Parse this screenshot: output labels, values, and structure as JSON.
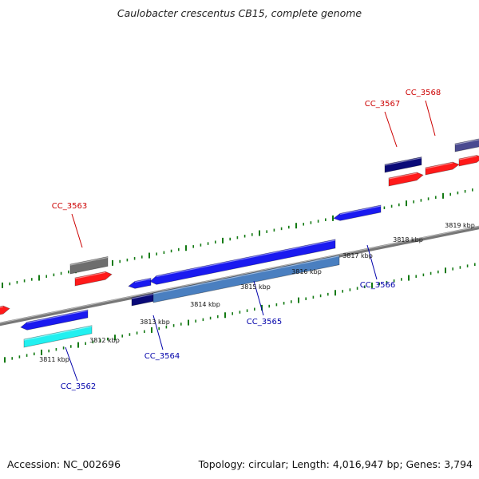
{
  "title": "Caulobacter crescentus CB15, complete genome",
  "footer": {
    "accession": "Accession: NC_002696",
    "summary": "Topology: circular; Length: 4,016,947 bp; Genes: 3,794"
  },
  "colors": {
    "backbone": "#777777",
    "tick": "#137a13",
    "forward_label": "#cc0000",
    "reverse_label": "#0000aa",
    "red": "#ff1a1a",
    "blue": "#1a1af0",
    "navy": "#0a0a78",
    "gray": "#6e6e6e",
    "cyan": "#22f0f0",
    "steel": "#4a7fc0",
    "slate": "#4a4a90"
  },
  "ticks": [
    {
      "label": "3811 kbp"
    },
    {
      "label": "3812 kbp"
    },
    {
      "label": "3813 kbp"
    },
    {
      "label": "3814 kbp"
    },
    {
      "label": "3815 kbp"
    },
    {
      "label": "3816 kbp"
    },
    {
      "label": "3817 kbp"
    },
    {
      "label": "3818 kbp"
    },
    {
      "label": "3819 kbp"
    }
  ],
  "gene_labels": [
    {
      "name": "CC_3563",
      "strand": "forward"
    },
    {
      "name": "CC_3567",
      "strand": "forward"
    },
    {
      "name": "CC_3568",
      "strand": "forward"
    },
    {
      "name": "CC_3562",
      "strand": "reverse"
    },
    {
      "name": "CC_3564",
      "strand": "reverse"
    },
    {
      "name": "CC_3565",
      "strand": "reverse"
    },
    {
      "name": "CC_3566",
      "strand": "reverse"
    }
  ]
}
